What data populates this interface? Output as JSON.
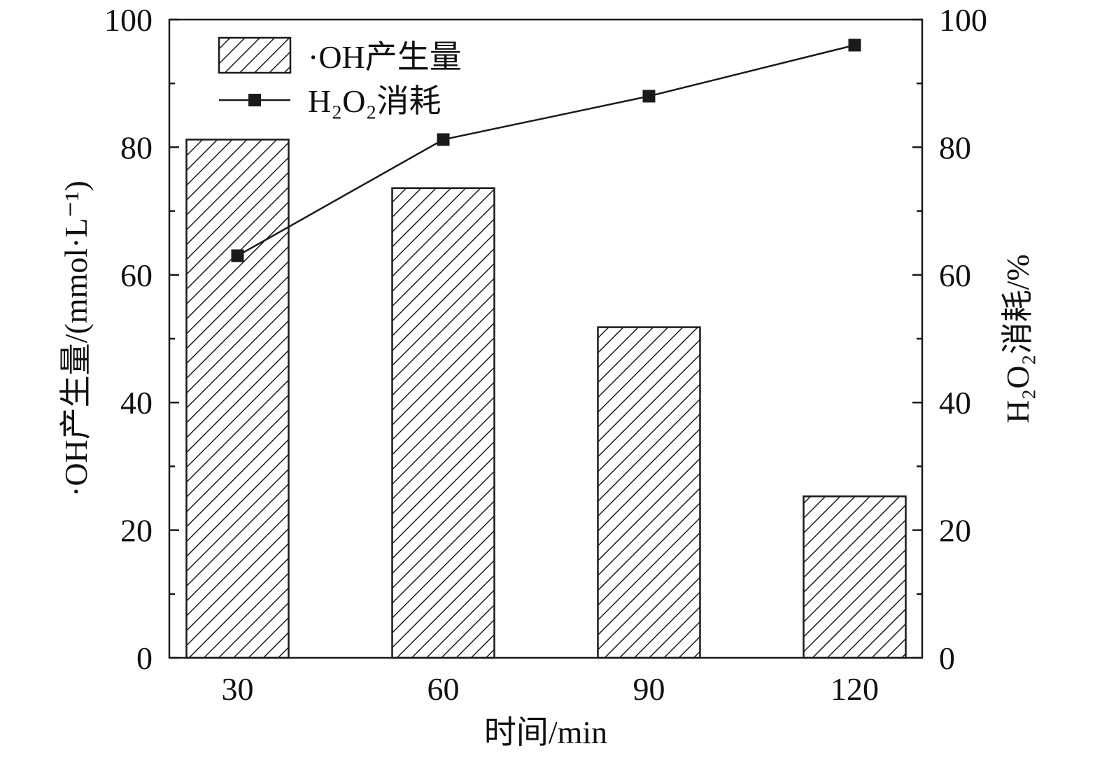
{
  "chart_data": {
    "type": "bar",
    "categories": [
      "30",
      "60",
      "90",
      "120"
    ],
    "xlabel": "时间/min",
    "ylabel": "·OH产生量/(mmol·L⁻¹)",
    "ylabel_right": "H₂O₂消耗/%",
    "ylim": [
      0,
      100
    ],
    "ylim_right": [
      0,
      100
    ],
    "yticks": [
      "0",
      "20",
      "40",
      "60",
      "80",
      "100"
    ],
    "legend_position": "top-left",
    "grid": false,
    "series": [
      {
        "name": "·OH产生量",
        "type": "bar",
        "axis": "left",
        "pattern": "diagonal-hatch",
        "color": "#1a1a1a",
        "values": [
          81.2,
          73.6,
          51.8,
          25.3
        ]
      },
      {
        "name": "H₂O₂消耗",
        "type": "line",
        "axis": "right",
        "marker": "square",
        "color": "#1a1a1a",
        "values": [
          63.0,
          81.2,
          88.0,
          96.0
        ]
      }
    ]
  }
}
